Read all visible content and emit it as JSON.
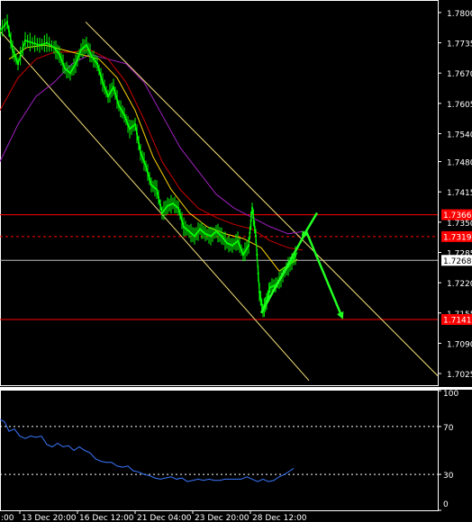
{
  "chart_data": [
    {
      "type": "line",
      "instrument_view": "price-candles-with-moving-averages",
      "y_ticks": [
        "1.7800",
        "1.7735",
        "1.7670",
        "1.7605",
        "1.7540",
        "1.7480",
        "1.7415",
        "1.7350",
        "1.7285",
        "1.7220",
        "1.7155",
        "1.7090",
        "1.7025"
      ],
      "ylim": [
        1.7,
        1.7825
      ],
      "x_ticks": [
        "13 Dec 20:00",
        "16 Dec 12:00",
        "21 Dec 04:00",
        "23 Dec 20:00",
        "28 Dec 12:00"
      ],
      "x_tick_positions": [
        22,
        86,
        150,
        214,
        278
      ],
      "x_first_tick": ":00",
      "xlim": [
        0,
        486
      ],
      "horizontal_levels": [
        {
          "label": "1.7366",
          "value": 1.7366,
          "style": "solid",
          "color": "#ff0000"
        },
        {
          "label": "1.7319",
          "value": 1.7319,
          "style": "dashed",
          "color": "#ff0000"
        },
        {
          "label": "1.7268",
          "value": 1.7268,
          "style": "solid",
          "color": "#c0c0c0"
        },
        {
          "label": "1.7141",
          "value": 1.7141,
          "style": "solid",
          "color": "#ff0000"
        }
      ],
      "channel": {
        "color": "#f5e07a",
        "lines": [
          {
            "x": [
              0,
              343
            ],
            "y": [
              1.776,
              1.701
            ]
          },
          {
            "x": [
              95,
              486
            ],
            "y": [
              1.778,
              1.702
            ]
          }
        ]
      },
      "price_series": {
        "color": "#00ff00",
        "x": [
          0,
          8,
          14,
          20,
          28,
          36,
          44,
          52,
          60,
          66,
          72,
          78,
          84,
          90,
          96,
          102,
          108,
          114,
          120,
          126,
          132,
          138,
          144,
          150,
          156,
          162,
          168,
          174,
          180,
          186,
          192,
          198,
          204,
          210,
          216,
          222,
          228,
          234,
          240,
          246,
          252,
          258,
          264,
          270,
          276,
          280,
          284,
          288,
          292,
          296,
          300,
          306,
          312,
          318,
          324,
          330
        ],
        "y": [
          1.776,
          1.778,
          1.772,
          1.769,
          1.774,
          1.7735,
          1.773,
          1.7735,
          1.7725,
          1.771,
          1.768,
          1.767,
          1.769,
          1.772,
          1.773,
          1.7705,
          1.769,
          1.765,
          1.762,
          1.764,
          1.76,
          1.758,
          1.755,
          1.756,
          1.75,
          1.747,
          1.743,
          1.742,
          1.737,
          1.7385,
          1.739,
          1.738,
          1.734,
          1.733,
          1.732,
          1.7335,
          1.7325,
          1.732,
          1.733,
          1.732,
          1.7305,
          1.73,
          1.731,
          1.728,
          1.73,
          1.738,
          1.732,
          1.72,
          1.716,
          1.718,
          1.721,
          1.7215,
          1.723,
          1.725,
          1.7265,
          1.7285
        ]
      },
      "ma_fast": {
        "color": "#ffd700",
        "x": [
          10,
          30,
          50,
          70,
          90,
          110,
          130,
          150,
          170,
          190,
          210,
          230,
          250,
          270,
          290,
          310,
          330
        ],
        "y": [
          1.77,
          1.7725,
          1.773,
          1.772,
          1.771,
          1.77,
          1.766,
          1.759,
          1.749,
          1.742,
          1.737,
          1.734,
          1.7325,
          1.7315,
          1.7295,
          1.7245,
          1.727
        ]
      },
      "ma_mid": {
        "color": "#cc0000",
        "x": [
          0,
          20,
          40,
          60,
          80,
          100,
          120,
          140,
          160,
          180,
          200,
          220,
          240,
          260,
          280,
          300,
          320,
          336
        ],
        "y": [
          1.759,
          1.766,
          1.77,
          1.7715,
          1.7715,
          1.772,
          1.77,
          1.765,
          1.757,
          1.748,
          1.742,
          1.738,
          1.736,
          1.7345,
          1.7335,
          1.731,
          1.7295,
          1.729
        ]
      },
      "ma_slow": {
        "color": "#a020c0",
        "x": [
          0,
          20,
          40,
          60,
          80,
          100,
          120,
          140,
          160,
          180,
          200,
          220,
          240,
          260,
          280,
          300,
          320,
          336
        ],
        "y": [
          1.748,
          1.756,
          1.762,
          1.765,
          1.769,
          1.771,
          1.77,
          1.769,
          1.765,
          1.758,
          1.751,
          1.746,
          1.741,
          1.738,
          1.736,
          1.734,
          1.7325,
          1.733
        ]
      },
      "annotations": [
        {
          "kind": "arrow",
          "color": "#22ff22",
          "from": [
            352,
            1.737
          ],
          "to": [
            336,
            1.7318
          ]
        },
        {
          "kind": "path-arrow",
          "color": "#22ff22",
          "points": [
            [
              290,
              1.7155
            ],
            [
              340,
              1.733
            ],
            [
              380,
              1.7145
            ]
          ]
        }
      ]
    },
    {
      "type": "line",
      "instrument_view": "oscillator",
      "y_ticks": [
        "100",
        "70",
        "30",
        "0"
      ],
      "ylim": [
        0,
        100
      ],
      "levels": [
        70,
        30
      ],
      "series": [
        {
          "color": "#3a78ff",
          "x": [
            0,
            5,
            10,
            16,
            22,
            28,
            34,
            40,
            46,
            52,
            58,
            64,
            70,
            76,
            82,
            88,
            94,
            100,
            106,
            112,
            118,
            124,
            130,
            136,
            142,
            148,
            154,
            160,
            166,
            172,
            178,
            184,
            190,
            196,
            202,
            208,
            214,
            220,
            226,
            232,
            238,
            244,
            250,
            256,
            262,
            268,
            274,
            280,
            286,
            292,
            298,
            304,
            310,
            316,
            322,
            326
          ],
          "y": [
            76,
            74,
            66,
            68,
            62,
            60,
            62,
            61,
            62,
            55,
            53,
            56,
            53,
            54,
            50,
            53,
            50,
            48,
            43,
            41,
            40,
            40,
            37,
            36,
            37,
            33,
            32,
            30,
            29,
            27,
            26,
            27,
            28,
            26,
            27,
            24,
            25,
            26,
            25,
            26,
            25,
            25,
            26,
            26,
            26,
            26,
            28,
            26,
            24,
            26,
            24,
            25,
            28,
            30,
            33,
            35
          ]
        }
      ]
    }
  ]
}
